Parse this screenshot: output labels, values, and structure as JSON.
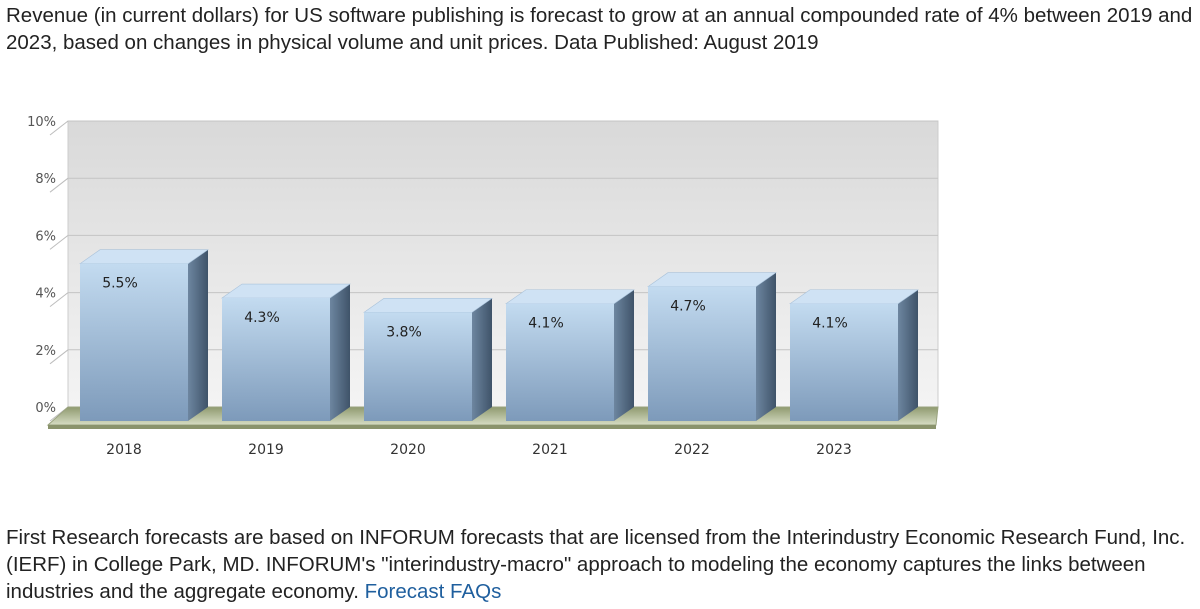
{
  "intro_text": "Revenue (in current dollars) for US software publishing is forecast to grow at an annual compounded rate of 4% between 2019 and 2023, based on changes in physical volume and unit prices. Data Published: August 2019",
  "footer": {
    "text": "First Research forecasts are based on INFORUM forecasts that are licensed from the Interindustry Economic Research Fund, Inc. (IERF) in College Park, MD. INFORUM's \"interindustry-macro\" approach to modeling the economy captures the links between industries and the aggregate economy.",
    "link_label": "Forecast FAQs",
    "link_color": "#1f5f9e"
  },
  "chart_data": {
    "type": "bar",
    "title": "",
    "xlabel": "",
    "ylabel": "",
    "categories": [
      "2018",
      "2019",
      "2020",
      "2021",
      "2022",
      "2023"
    ],
    "values": [
      5.5,
      4.3,
      3.8,
      4.1,
      4.7,
      4.1
    ],
    "data_labels": [
      "5.5%",
      "4.3%",
      "3.8%",
      "4.1%",
      "4.7%",
      "4.1%"
    ],
    "ylim": [
      0,
      10
    ],
    "yticks": [
      0,
      2,
      4,
      6,
      8,
      10
    ],
    "ytick_labels": [
      "0%",
      "2%",
      "4%",
      "6%",
      "8%",
      "10%"
    ],
    "grid": true,
    "style": "3d",
    "colors": {
      "bar_front_top": "#b9d4ec",
      "bar_front_bottom": "#7f9cbc",
      "bar_top": "#c9def2",
      "bar_side": "#4f6780",
      "floor": "#a9b38c",
      "wall": "#e3e3e3"
    }
  }
}
